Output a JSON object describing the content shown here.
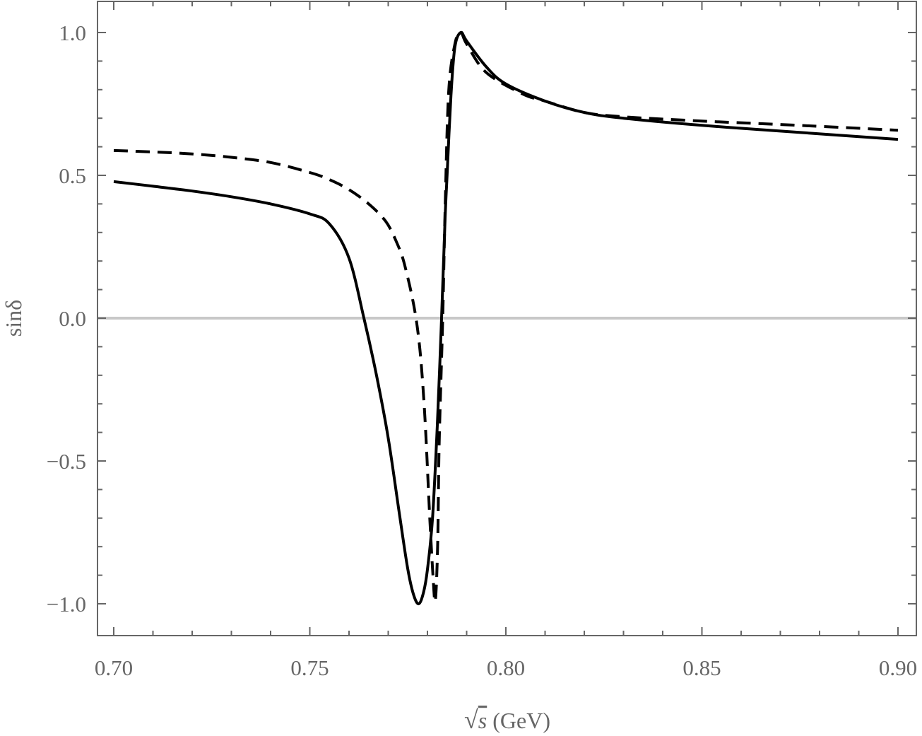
{
  "chart_data": {
    "type": "line",
    "title": "",
    "xlabel": "√s (GeV)",
    "xlabel_parts": {
      "sqrt": "√",
      "var": "s",
      "unit": " (GeV)"
    },
    "ylabel": "sinδ",
    "xlim": [
      0.695,
      0.905
    ],
    "ylim": [
      -1.11,
      1.11
    ],
    "xticks": [
      0.7,
      0.75,
      0.8,
      0.85,
      0.9
    ],
    "xtick_labels": [
      "0.70",
      "0.75",
      "0.80",
      "0.85",
      "0.90"
    ],
    "yticks": [
      -1.0,
      -0.5,
      0.0,
      0.5,
      1.0
    ],
    "ytick_labels": [
      "−1.0",
      "−0.5",
      "0.0",
      "0.5",
      "1.0"
    ],
    "grid": false,
    "reference_line": {
      "y": 0,
      "color": "#c8c8c8"
    },
    "series": [
      {
        "name": "solid",
        "style": "solid",
        "color": "#000000",
        "x": [
          0.7,
          0.71,
          0.72,
          0.73,
          0.74,
          0.75,
          0.755,
          0.76,
          0.7638,
          0.767,
          0.77,
          0.773,
          0.775,
          0.7765,
          0.7778,
          0.779,
          0.78,
          0.7813,
          0.7825,
          0.7836,
          0.7845,
          0.785,
          0.786,
          0.787,
          0.7885,
          0.79,
          0.795,
          0.8,
          0.81,
          0.82,
          0.83,
          0.85,
          0.87,
          0.9
        ],
        "y": [
          0.478,
          0.462,
          0.445,
          0.425,
          0.4,
          0.365,
          0.33,
          0.21,
          0.0,
          -0.2,
          -0.42,
          -0.7,
          -0.88,
          -0.97,
          -1.0,
          -0.96,
          -0.88,
          -0.7,
          -0.38,
          0.0,
          0.35,
          0.5,
          0.78,
          0.95,
          1.0,
          0.97,
          0.88,
          0.82,
          0.76,
          0.72,
          0.7,
          0.675,
          0.655,
          0.626
        ]
      },
      {
        "name": "dashed",
        "style": "dashed",
        "color": "#000000",
        "x": [
          0.7,
          0.71,
          0.72,
          0.73,
          0.74,
          0.75,
          0.755,
          0.76,
          0.765,
          0.7693,
          0.772,
          0.7743,
          0.7773,
          0.7791,
          0.7806,
          0.7814,
          0.782,
          0.7826,
          0.783,
          0.7839,
          0.7845,
          0.7854,
          0.787,
          0.7885,
          0.79,
          0.795,
          0.8043,
          0.81,
          0.82,
          0.83,
          0.85,
          0.87,
          0.9
        ],
        "y": [
          0.587,
          0.582,
          0.575,
          0.563,
          0.545,
          0.51,
          0.485,
          0.45,
          0.4,
          0.34,
          0.27,
          0.18,
          -0.02,
          -0.29,
          -0.7,
          -0.9,
          -0.99,
          -0.8,
          -0.43,
          0.0,
          0.38,
          0.79,
          0.96,
          1.0,
          0.96,
          0.86,
          0.785,
          0.76,
          0.72,
          0.705,
          0.69,
          0.678,
          0.658
        ]
      }
    ]
  }
}
